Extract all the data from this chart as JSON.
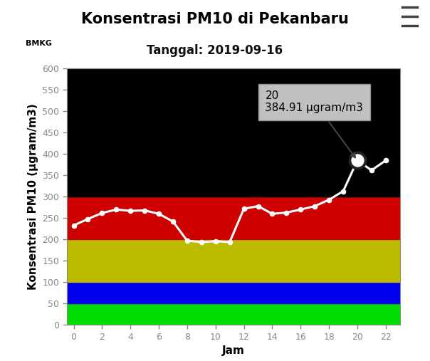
{
  "title": "Konsentrasi PM10 di Pekanbaru",
  "subtitle": "Tanggal: 2019-09-16",
  "xlabel": "Jam",
  "ylabel": "Konsentrasi PM10 (μgram/m3)",
  "x_values": [
    0,
    1,
    2,
    3,
    4,
    5,
    6,
    7,
    8,
    9,
    10,
    11,
    12,
    13,
    14,
    15,
    16,
    17,
    18,
    19,
    20,
    21,
    22
  ],
  "y_values": [
    233,
    248,
    262,
    270,
    267,
    268,
    260,
    242,
    197,
    194,
    196,
    194,
    272,
    278,
    260,
    263,
    270,
    278,
    293,
    313,
    384.91,
    362,
    385
  ],
  "ylim": [
    0,
    600
  ],
  "xlim": [
    -0.5,
    23
  ],
  "xticks": [
    0,
    2,
    4,
    6,
    8,
    10,
    12,
    14,
    16,
    18,
    20,
    22
  ],
  "yticks": [
    0,
    50,
    100,
    150,
    200,
    250,
    300,
    350,
    400,
    450,
    500,
    550,
    600
  ],
  "bg_color": "#000000",
  "fig_bg_color": "#ffffff",
  "line_color": "#ffffff",
  "marker_color": "#ffffff",
  "highlighted_x": 20,
  "highlighted_y": 384.91,
  "tooltip_text_line1": "20",
  "tooltip_text_line2": "384.91 μgram/m3",
  "bands": [
    {
      "ymin": 0,
      "ymax": 50,
      "color": "#00dd00"
    },
    {
      "ymin": 50,
      "ymax": 100,
      "color": "#0000ee"
    },
    {
      "ymin": 100,
      "ymax": 200,
      "color": "#bbbb00"
    },
    {
      "ymin": 200,
      "ymax": 300,
      "color": "#cc0000"
    },
    {
      "ymin": 300,
      "ymax": 600,
      "color": "#000000"
    }
  ],
  "title_fontsize": 15,
  "subtitle_fontsize": 12,
  "axis_label_fontsize": 11,
  "tick_fontsize": 9,
  "tick_color": "#888888"
}
